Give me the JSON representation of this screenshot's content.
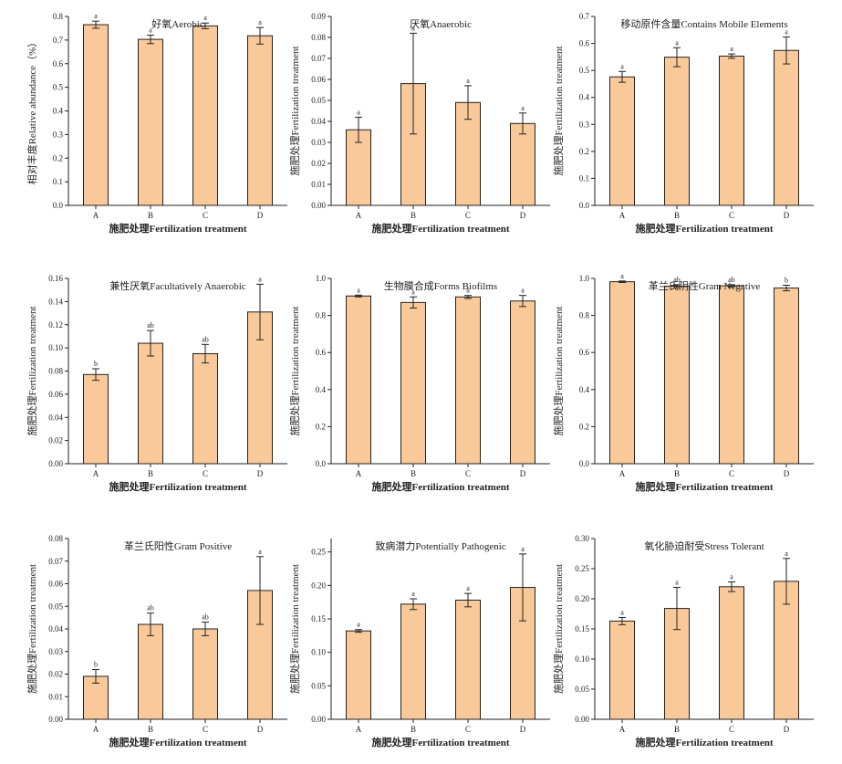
{
  "chart_data": [
    {
      "type": "bar",
      "title": "好氧Aerobic",
      "xlabel": "施肥处理Fertilization treatment",
      "ylabel": "相对丰度Relative abundance（%）",
      "categories": [
        "A",
        "B",
        "C",
        "D"
      ],
      "values": [
        0.765,
        0.703,
        0.76,
        0.718
      ],
      "errors": [
        0.015,
        0.018,
        0.012,
        0.035
      ],
      "letters": [
        "a",
        "a",
        "a",
        "a"
      ],
      "ylim": [
        0,
        0.8
      ],
      "yticks": [
        "0.0",
        "0.1",
        "0.2",
        "0.3",
        "0.4",
        "0.5",
        "0.6",
        "0.7",
        "0.8"
      ]
    },
    {
      "type": "bar",
      "title": "厌氧Anaerobic",
      "xlabel": "施肥处理Fertilization treatment",
      "ylabel": "施肥处理Fertilization treatment",
      "categories": [
        "A",
        "B",
        "C",
        "D"
      ],
      "values": [
        0.036,
        0.058,
        0.049,
        0.039
      ],
      "errors": [
        0.006,
        0.024,
        0.008,
        0.005
      ],
      "letters": [
        "a",
        "a",
        "a",
        "a"
      ],
      "ylim": [
        0,
        0.09
      ],
      "yticks": [
        "0.00",
        "0.01",
        "0.02",
        "0.03",
        "0.04",
        "0.05",
        "0.06",
        "0.07",
        "0.08",
        "0.09"
      ]
    },
    {
      "type": "bar",
      "title": "移动原件含量Contains Mobile Elements",
      "xlabel": "施肥处理Fertilization treatment",
      "ylabel": "施肥处理Fertilization treatment",
      "categories": [
        "A",
        "B",
        "C",
        "D"
      ],
      "values": [
        0.476,
        0.549,
        0.553,
        0.574
      ],
      "errors": [
        0.02,
        0.035,
        0.008,
        0.05
      ],
      "letters": [
        "a",
        "a",
        "a",
        "a"
      ],
      "ylim": [
        0,
        0.7
      ],
      "yticks": [
        "0.0",
        "0.1",
        "0.2",
        "0.3",
        "0.4",
        "0.5",
        "0.6",
        "0.7"
      ]
    },
    {
      "type": "bar",
      "title": "兼性厌氧Facultatively Anaerobic",
      "xlabel": "施肥处理Fertilization treatment",
      "ylabel": "施肥处理Fertilization treatment",
      "categories": [
        "A",
        "B",
        "C",
        "D"
      ],
      "values": [
        0.077,
        0.104,
        0.095,
        0.131
      ],
      "errors": [
        0.005,
        0.011,
        0.008,
        0.024
      ],
      "letters": [
        "b",
        "ab",
        "ab",
        "a"
      ],
      "ylim": [
        0,
        0.16
      ],
      "yticks": [
        "0.00",
        "0.02",
        "0.04",
        "0.06",
        "0.08",
        "0.10",
        "0.12",
        "0.14",
        "0.16"
      ]
    },
    {
      "type": "bar",
      "title": "生物膜合成Forms Biofilms",
      "xlabel": "施肥处理Fertilization treatment",
      "ylabel": "施肥处理Fertilization treatment",
      "categories": [
        "A",
        "B",
        "C",
        "D"
      ],
      "values": [
        0.905,
        0.87,
        0.9,
        0.878
      ],
      "errors": [
        0.005,
        0.03,
        0.008,
        0.03
      ],
      "letters": [
        "a",
        "a",
        "a",
        "a"
      ],
      "ylim": [
        0,
        1.0
      ],
      "yticks": [
        "0.0",
        "0.2",
        "0.4",
        "0.6",
        "0.8",
        "1.0"
      ]
    },
    {
      "type": "bar",
      "title": "革兰氏阴性Gram Negative",
      "xlabel": "施肥处理Fertilization treatment",
      "ylabel": "施肥处理Fertilization treatment",
      "categories": [
        "A",
        "B",
        "C",
        "D"
      ],
      "values": [
        0.982,
        0.958,
        0.96,
        0.948
      ],
      "errors": [
        0.004,
        0.008,
        0.006,
        0.015
      ],
      "letters": [
        "a",
        "ab",
        "ab",
        "b"
      ],
      "ylim": [
        0,
        1.0
      ],
      "yticks": [
        "0.0",
        "0.2",
        "0.4",
        "0.6",
        "0.8",
        "1.0"
      ]
    },
    {
      "type": "bar",
      "title": "革兰氏阳性Gram Positive",
      "xlabel": "施肥处理Fertilization treatment",
      "ylabel": "施肥处理Fertilization treatment",
      "categories": [
        "A",
        "B",
        "C",
        "D"
      ],
      "values": [
        0.019,
        0.042,
        0.04,
        0.057
      ],
      "errors": [
        0.003,
        0.005,
        0.003,
        0.015
      ],
      "letters": [
        "b",
        "ab",
        "ab",
        "a"
      ],
      "ylim": [
        0,
        0.08
      ],
      "yticks": [
        "0.00",
        "0.01",
        "0.02",
        "0.03",
        "0.04",
        "0.05",
        "0.06",
        "0.07",
        "0.08"
      ]
    },
    {
      "type": "bar",
      "title": "致病潜力Potentially Pathogenic",
      "xlabel": "施肥处理Fertilization treatment",
      "ylabel": "施肥处理Fertilization treatment",
      "categories": [
        "A",
        "B",
        "C",
        "D"
      ],
      "values": [
        0.132,
        0.172,
        0.178,
        0.197
      ],
      "errors": [
        0.002,
        0.008,
        0.01,
        0.05
      ],
      "letters": [
        "a",
        "a",
        "a",
        "a"
      ],
      "ylim": [
        0,
        0.27
      ],
      "yticks": [
        "0.00",
        "0.05",
        "0.10",
        "0.15",
        "0.20",
        "0.25"
      ]
    },
    {
      "type": "bar",
      "title": "氧化胁迫耐受Stress Tolerant",
      "xlabel": "施肥处理Fertilization treatment",
      "ylabel": "施肥处理Fertilization treatment",
      "categories": [
        "A",
        "B",
        "C",
        "D"
      ],
      "values": [
        0.163,
        0.184,
        0.22,
        0.229
      ],
      "errors": [
        0.006,
        0.035,
        0.008,
        0.038
      ],
      "letters": [
        "a",
        "a",
        "a",
        "a"
      ],
      "ylim": [
        0,
        0.3
      ],
      "yticks": [
        "0.00",
        "0.05",
        "0.10",
        "0.15",
        "0.20",
        "0.25",
        "0.30"
      ]
    }
  ]
}
